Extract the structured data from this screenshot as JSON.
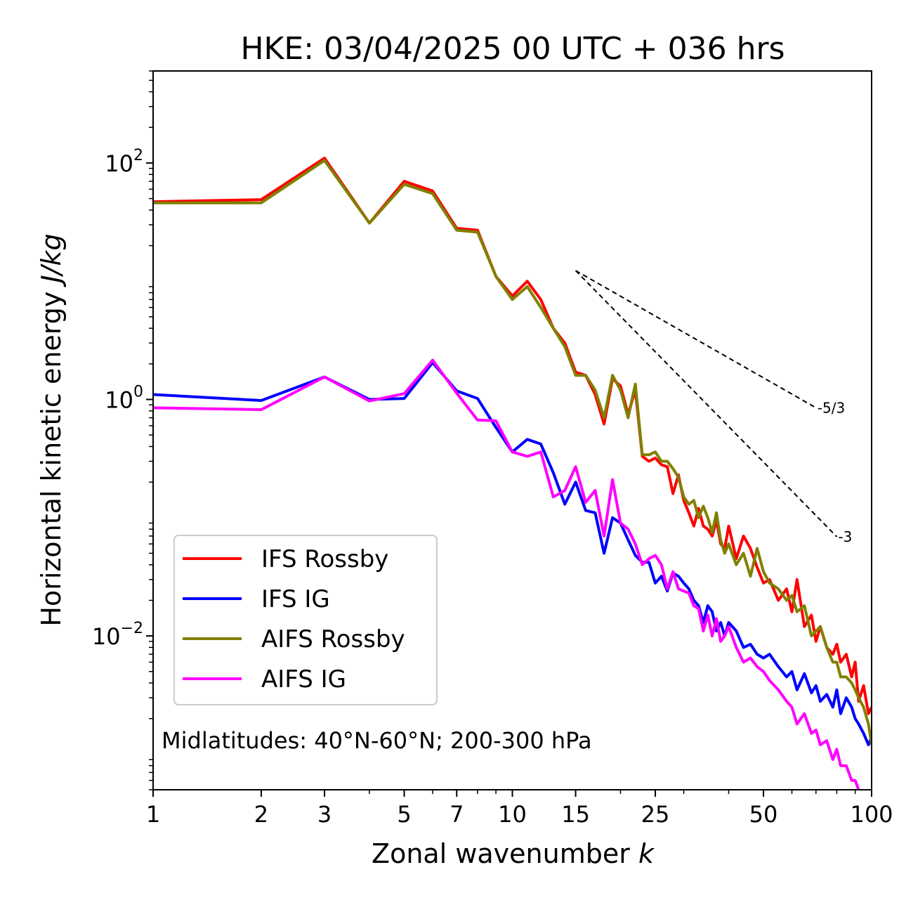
{
  "chart_data": {
    "type": "line",
    "title": "HKE: 03/04/2025 00 UTC + 036 hrs",
    "xlabel": "Zonal wavenumber ",
    "xlabel_italic": "k",
    "ylabel": "Horizontal kinetic energy ",
    "ylabel_italic": "J/kg",
    "x_scale": "log",
    "y_scale": "log",
    "xlim": [
      1,
      100
    ],
    "ylim": [
      0.0005,
      600
    ],
    "x_ticks": [
      1,
      2,
      3,
      5,
      7,
      10,
      15,
      25,
      50,
      100
    ],
    "x_tick_labels": [
      "1",
      "2",
      "3",
      "5",
      "7",
      "10",
      "15",
      "25",
      "50",
      "100"
    ],
    "y_ticks": [
      100,
      1,
      0.01
    ],
    "y_tick_labels": [
      {
        "base": "10",
        "exp": "2"
      },
      {
        "base": "10",
        "exp": "0"
      },
      {
        "base": "10",
        "exp": "−2"
      }
    ],
    "grid": false,
    "legend_position": "lower-left",
    "annotation": "Midlatitudes: 40°N-60°N; 200-300 hPa",
    "reference_slopes": [
      {
        "label": "-5/3",
        "x": [
          15,
          70
        ],
        "y": [
          12.3,
          0.85
        ]
      },
      {
        "label": "-3",
        "x": [
          15,
          80
        ],
        "y": [
          12.3,
          0.069
        ]
      }
    ],
    "series": [
      {
        "name": "IFS Rossby",
        "color": "#ff0000",
        "x": [
          1,
          2,
          3,
          4,
          5,
          6,
          7,
          8,
          9,
          10,
          11,
          12,
          13,
          14,
          15,
          16,
          17,
          18,
          19,
          20,
          21,
          22,
          23,
          24,
          25,
          26,
          27,
          28,
          29,
          30,
          31,
          32,
          33,
          34,
          35,
          36,
          37,
          38,
          39,
          40,
          42,
          44,
          46,
          48,
          50,
          52,
          55,
          58,
          60,
          62,
          65,
          68,
          70,
          72,
          75,
          78,
          80,
          82,
          85,
          88,
          90,
          92,
          95,
          98,
          100
        ],
        "y": [
          47,
          49,
          110,
          31,
          70,
          58,
          28,
          27,
          11,
          7.5,
          10,
          7,
          4,
          3,
          1.7,
          1.6,
          1.1,
          0.62,
          1.5,
          1.3,
          0.75,
          1.2,
          0.33,
          0.3,
          0.32,
          0.28,
          0.27,
          0.16,
          0.23,
          0.14,
          0.11,
          0.085,
          0.12,
          0.085,
          0.08,
          0.07,
          0.095,
          0.06,
          0.055,
          0.085,
          0.045,
          0.07,
          0.055,
          0.038,
          0.028,
          0.03,
          0.02,
          0.025,
          0.016,
          0.03,
          0.012,
          0.015,
          0.009,
          0.012,
          0.008,
          0.007,
          0.0085,
          0.006,
          0.007,
          0.0045,
          0.006,
          0.0028,
          0.0038,
          0.0022,
          0.0025
        ]
      },
      {
        "name": "IFS IG",
        "color": "#0000ff",
        "x": [
          1,
          2,
          3,
          4,
          5,
          6,
          7,
          8,
          9,
          10,
          11,
          12,
          13,
          14,
          15,
          16,
          17,
          18,
          19,
          20,
          21,
          22,
          23,
          24,
          25,
          26,
          27,
          28,
          29,
          30,
          31,
          32,
          33,
          34,
          35,
          36,
          37,
          38,
          39,
          40,
          42,
          44,
          46,
          48,
          50,
          52,
          55,
          58,
          60,
          62,
          65,
          68,
          70,
          72,
          75,
          78,
          80,
          82,
          85,
          88,
          90,
          92,
          95,
          98,
          100
        ],
        "y": [
          1.1,
          0.98,
          1.55,
          1,
          1.02,
          2.05,
          1.18,
          1.02,
          0.58,
          0.36,
          0.46,
          0.42,
          0.24,
          0.13,
          0.2,
          0.115,
          0.11,
          0.05,
          0.1,
          0.09,
          0.065,
          0.048,
          0.042,
          0.042,
          0.028,
          0.032,
          0.024,
          0.034,
          0.032,
          0.028,
          0.025,
          0.02,
          0.018,
          0.013,
          0.018,
          0.016,
          0.011,
          0.013,
          0.01,
          0.013,
          0.011,
          0.008,
          0.0085,
          0.007,
          0.0065,
          0.007,
          0.0055,
          0.0045,
          0.005,
          0.0035,
          0.0048,
          0.0033,
          0.0038,
          0.0028,
          0.0032,
          0.0025,
          0.0035,
          0.0022,
          0.003,
          0.0025,
          0.002,
          0.0018,
          0.0015,
          0.0012,
          0.0014
        ]
      },
      {
        "name": "AIFS Rossby",
        "color": "#808000",
        "x": [
          1,
          2,
          3,
          4,
          5,
          6,
          7,
          8,
          9,
          10,
          11,
          12,
          13,
          14,
          15,
          16,
          17,
          18,
          19,
          20,
          21,
          22,
          23,
          24,
          25,
          26,
          27,
          28,
          29,
          30,
          31,
          32,
          33,
          34,
          35,
          36,
          37,
          38,
          39,
          40,
          42,
          44,
          46,
          48,
          50,
          52,
          55,
          58,
          60,
          62,
          65,
          68,
          70,
          72,
          75,
          78,
          80,
          82,
          85,
          88,
          90,
          92,
          95,
          98,
          100
        ],
        "y": [
          46,
          46,
          105,
          31,
          66,
          55,
          27,
          26,
          11,
          7,
          9,
          6,
          4,
          2.8,
          1.6,
          1.6,
          1.2,
          0.7,
          1.6,
          1.2,
          0.7,
          1.35,
          0.34,
          0.34,
          0.36,
          0.3,
          0.3,
          0.26,
          0.22,
          0.15,
          0.13,
          0.14,
          0.1,
          0.125,
          0.1,
          0.075,
          0.11,
          0.065,
          0.05,
          0.06,
          0.04,
          0.05,
          0.032,
          0.055,
          0.035,
          0.028,
          0.025,
          0.02,
          0.022,
          0.016,
          0.018,
          0.01,
          0.011,
          0.012,
          0.008,
          0.006,
          0.006,
          0.0045,
          0.0045,
          0.004,
          0.0035,
          0.003,
          0.0025,
          0.0018,
          0.0012
        ]
      },
      {
        "name": "AIFS IG",
        "color": "#ff00ff",
        "x": [
          1,
          2,
          3,
          4,
          5,
          6,
          7,
          8,
          9,
          10,
          11,
          12,
          13,
          14,
          15,
          16,
          17,
          18,
          19,
          20,
          21,
          22,
          23,
          24,
          25,
          26,
          27,
          28,
          29,
          30,
          31,
          32,
          33,
          34,
          35,
          36,
          37,
          38,
          39,
          40,
          42,
          44,
          46,
          48,
          50,
          52,
          55,
          58,
          60,
          62,
          65,
          68,
          70,
          72,
          75,
          78,
          80,
          82,
          85,
          88,
          90,
          92,
          95,
          98,
          100
        ],
        "y": [
          0.85,
          0.82,
          1.55,
          0.97,
          1.12,
          2.15,
          1.13,
          0.67,
          0.66,
          0.36,
          0.33,
          0.36,
          0.15,
          0.17,
          0.27,
          0.135,
          0.17,
          0.07,
          0.21,
          0.09,
          0.08,
          0.06,
          0.04,
          0.045,
          0.048,
          0.04,
          0.025,
          0.035,
          0.025,
          0.024,
          0.023,
          0.018,
          0.017,
          0.011,
          0.015,
          0.01,
          0.014,
          0.009,
          0.01,
          0.012,
          0.008,
          0.006,
          0.0065,
          0.0055,
          0.005,
          0.0042,
          0.0035,
          0.0028,
          0.0025,
          0.0018,
          0.0022,
          0.0015,
          0.0016,
          0.0012,
          0.0013,
          0.0009,
          0.0011,
          0.0008,
          0.0008,
          0.0006,
          0.0006,
          0.0005,
          0.00045,
          0.0004,
          0.00045
        ]
      }
    ]
  }
}
